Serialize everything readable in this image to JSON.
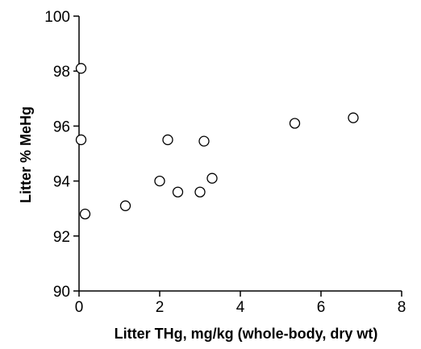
{
  "chart_data": {
    "type": "scatter",
    "title": "",
    "xlabel": "Litter THg, mg/kg (whole-body, dry wt)",
    "ylabel": "Litter % MeHg",
    "xlim": [
      0,
      8
    ],
    "ylim": [
      90,
      100
    ],
    "x_ticks": [
      0,
      2,
      4,
      6,
      8
    ],
    "y_ticks": [
      90,
      92,
      94,
      96,
      98,
      100
    ],
    "grid": false,
    "legend": "none",
    "marker": "open-circle",
    "marker_color": "#000000",
    "series": [
      {
        "points": [
          {
            "x": 0.05,
            "y": 98.1
          },
          {
            "x": 0.05,
            "y": 95.5
          },
          {
            "x": 0.15,
            "y": 92.8
          },
          {
            "x": 1.15,
            "y": 93.1
          },
          {
            "x": 2.0,
            "y": 94.0
          },
          {
            "x": 2.2,
            "y": 95.5
          },
          {
            "x": 2.45,
            "y": 93.6
          },
          {
            "x": 3.0,
            "y": 93.6
          },
          {
            "x": 3.1,
            "y": 95.45
          },
          {
            "x": 3.3,
            "y": 94.1
          },
          {
            "x": 5.35,
            "y": 96.1
          },
          {
            "x": 6.8,
            "y": 96.3
          }
        ]
      }
    ]
  }
}
